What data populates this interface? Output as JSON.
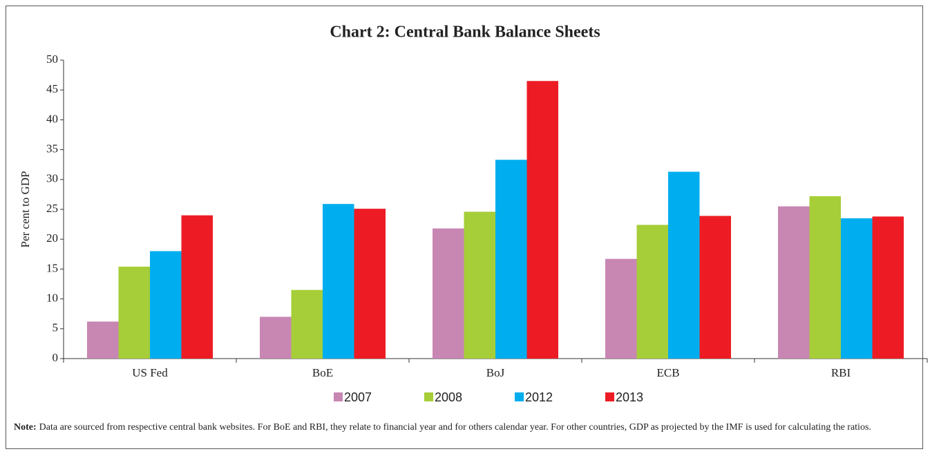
{
  "chart_data": {
    "type": "bar",
    "title": "Chart 2: Central Bank Balance Sheets",
    "y_label": "Per cent to GDP",
    "categories": [
      "US Fed",
      "BoE",
      "BoJ",
      "ECB",
      "RBI"
    ],
    "series": [
      {
        "name": "2007",
        "color": "#c886b3",
        "values": [
          6.2,
          7,
          21.8,
          16.7,
          25.5
        ]
      },
      {
        "name": "2008",
        "color": "#a6ce39",
        "values": [
          15.4,
          11.5,
          24.6,
          22.4,
          27.2
        ]
      },
      {
        "name": "2012",
        "color": "#00aeef",
        "values": [
          18,
          25.9,
          33.3,
          31.3,
          23.5
        ]
      },
      {
        "name": "2013",
        "color": "#ed1c24",
        "values": [
          24,
          25.1,
          46.5,
          23.9,
          23.8
        ]
      }
    ],
    "ylim": [
      0,
      50
    ],
    "yticks": [
      0,
      5,
      10,
      15,
      20,
      25,
      30,
      35,
      40,
      45,
      50
    ],
    "grid": false,
    "note_label": "Note:",
    "note": "Data are sourced from respective central bank websites. For BoE and RBI, they relate to financial year and for others calendar year. For other countries, GDP as projected by the IMF is used for calculating the ratios."
  }
}
